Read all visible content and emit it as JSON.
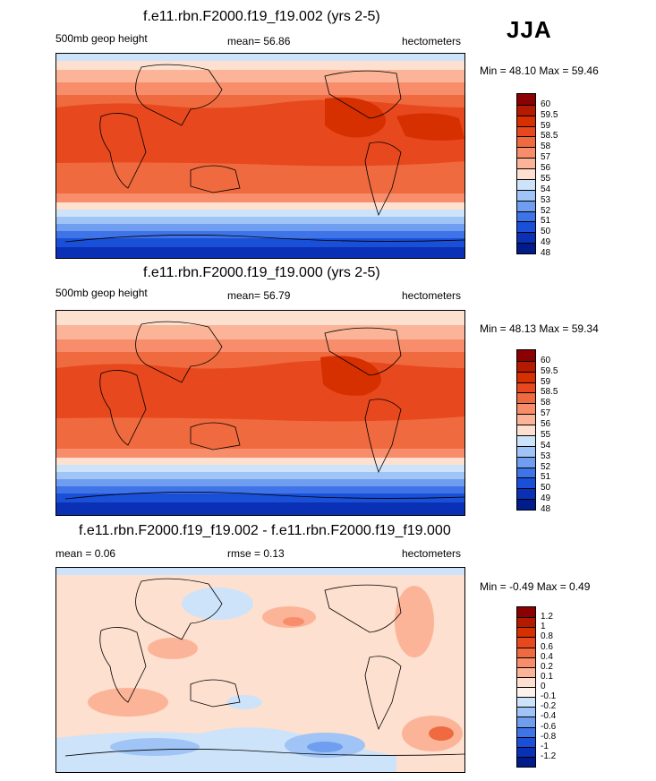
{
  "season": "JJA",
  "panels": [
    {
      "title": "f.e11.rbn.F2000.f19_f19.002 (yrs 2-5)",
      "left_label": "500mb geop height",
      "mean_label": "mean=  56.86",
      "units": "hectometers",
      "minmax": "Min =  48.10 Max =  59.46",
      "levels": [
        "60",
        "59.5",
        "59",
        "58.5",
        "58",
        "57",
        "56",
        "55",
        "54",
        "53",
        "52",
        "51",
        "50",
        "49",
        "48"
      ],
      "colors": [
        "#8b0000",
        "#b31a00",
        "#d62f00",
        "#e8481d",
        "#f06a3f",
        "#f78d6a",
        "#fbb498",
        "#fde0cf",
        "#cce3fa",
        "#9fc4f5",
        "#6f9ef0",
        "#3f73e8",
        "#1a4fd8",
        "#0a30b5",
        "#001b8a"
      ]
    },
    {
      "title": "f.e11.rbn.F2000.f19_f19.000 (yrs 2-5)",
      "left_label": "500mb geop height",
      "mean_label": "mean=  56.79",
      "units": "hectometers",
      "minmax": "Min =  48.13 Max =  59.34",
      "levels": [
        "60",
        "59.5",
        "59",
        "58.5",
        "58",
        "57",
        "56",
        "55",
        "54",
        "53",
        "52",
        "51",
        "50",
        "49",
        "48"
      ],
      "colors": [
        "#8b0000",
        "#b31a00",
        "#d62f00",
        "#e8481d",
        "#f06a3f",
        "#f78d6a",
        "#fbb498",
        "#fde0cf",
        "#cce3fa",
        "#9fc4f5",
        "#6f9ef0",
        "#3f73e8",
        "#1a4fd8",
        "#0a30b5",
        "#001b8a"
      ]
    },
    {
      "title": "f.e11.rbn.F2000.f19_f19.002 - f.e11.rbn.F2000.f19_f19.000",
      "left_label": "mean =   0.06",
      "mean_label": "rmse =   0.13",
      "units": "hectometers",
      "minmax": "Min =  -0.49 Max =   0.49",
      "levels": [
        "1.2",
        "1",
        "0.8",
        "0.6",
        "0.4",
        "0.2",
        "0.1",
        "0",
        "-0.1",
        "-0.2",
        "-0.4",
        "-0.6",
        "-0.8",
        "-1",
        "-1.2"
      ],
      "colors": [
        "#8b0000",
        "#b31a00",
        "#d62f00",
        "#e8481d",
        "#f06a3f",
        "#f78d6a",
        "#fbb498",
        "#fde0cf",
        "#fdf3ec",
        "#cce3fa",
        "#9fc4f5",
        "#6f9ef0",
        "#3f73e8",
        "#1a4fd8",
        "#0a30b5",
        "#001b8a"
      ]
    }
  ]
}
